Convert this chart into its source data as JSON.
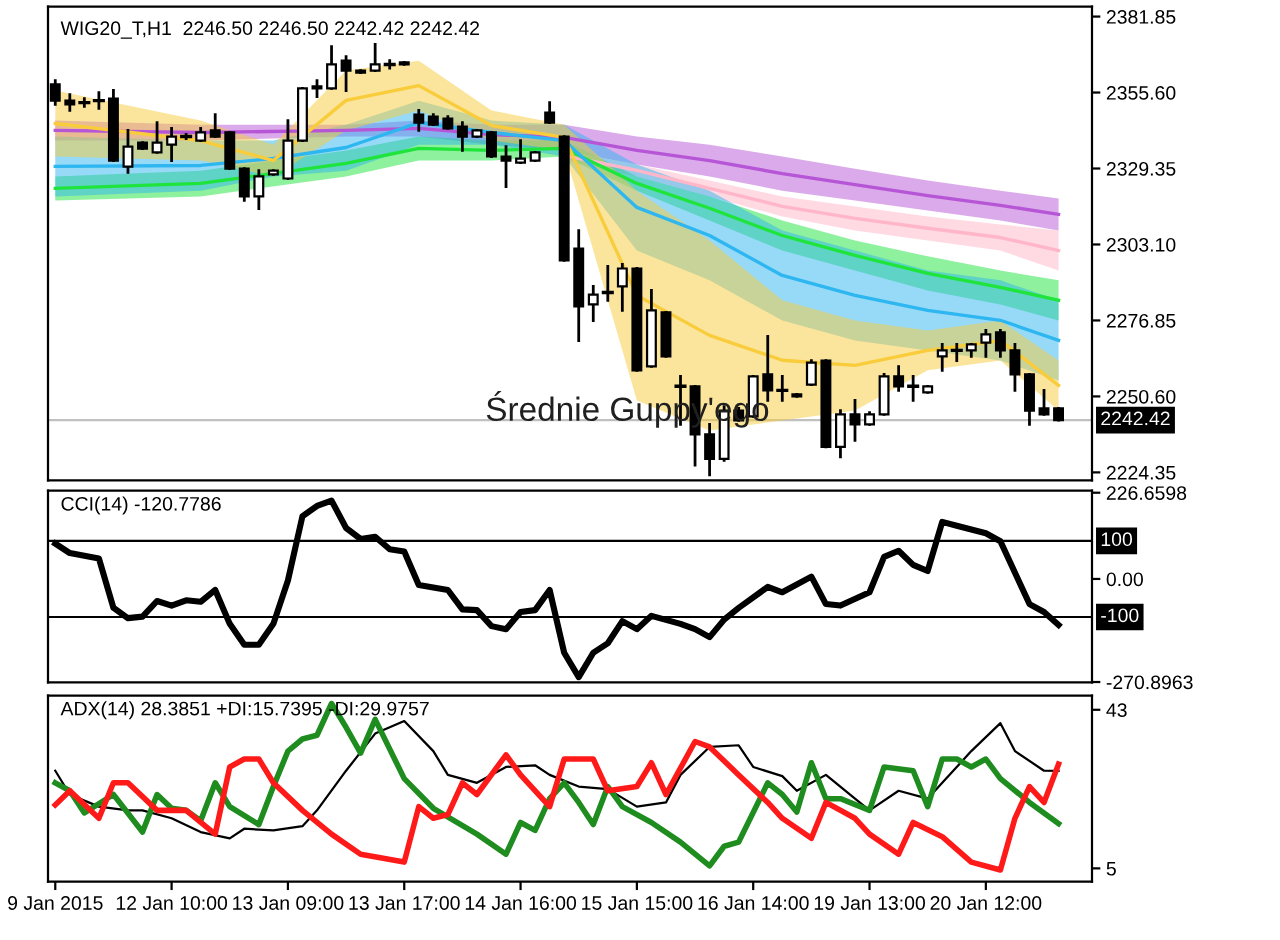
{
  "chart_data": [
    {
      "type": "candlestick",
      "title": "WIG20_T,H1  2246.50 2246.50 2242.42 2242.42",
      "ohlc": [
        [
          2358.4,
          2359.7,
          2351.5,
          2352.8
        ],
        [
          2352.8,
          2354.9,
          2349.4,
          2351.5
        ],
        [
          2352.1,
          2353.5,
          2350.8,
          2352.1
        ],
        [
          2352.8,
          2355.6,
          2350.1,
          2352.8
        ],
        [
          2353.5,
          2356.3,
          2332.1,
          2332.1
        ],
        [
          2330.0,
          2342.5,
          2328.0,
          2336.9
        ],
        [
          2338.3,
          2338.3,
          2336.2,
          2336.2
        ],
        [
          2334.9,
          2345.2,
          2334.9,
          2338.3
        ],
        [
          2337.6,
          2343.2,
          2332.1,
          2340.4
        ],
        [
          2340.4,
          2341.1,
          2339.7,
          2340.4
        ],
        [
          2339.0,
          2343.2,
          2339.0,
          2341.8
        ],
        [
          2342.5,
          2348.0,
          2340.4,
          2340.4
        ],
        [
          2341.8,
          2341.8,
          2329.3,
          2329.3
        ],
        [
          2329.3,
          2329.3,
          2318.3,
          2319.7
        ],
        [
          2319.7,
          2328.6,
          2315.5,
          2326.6
        ],
        [
          2327.3,
          2328.6,
          2327.3,
          2328.6
        ],
        [
          2325.9,
          2345.9,
          2325.9,
          2339.0
        ],
        [
          2339.0,
          2357.0,
          2339.0,
          2357.0
        ],
        [
          2357.0,
          2359.7,
          2354.2,
          2357.7
        ],
        [
          2357.0,
          2371.5,
          2357.0,
          2365.3
        ],
        [
          2366.6,
          2368.0,
          2356.3,
          2363.2
        ],
        [
          2363.2,
          2363.2,
          2362.5,
          2362.5
        ],
        [
          2363.2,
          2372.2,
          2363.2,
          2365.3
        ],
        [
          2365.3,
          2366.6,
          2364.0,
          2365.3
        ],
        [
          2366.0,
          2366.0,
          2365.3,
          2365.3
        ],
        [
          2348.0,
          2349.4,
          2342.5,
          2345.2
        ],
        [
          2347.3,
          2348.0,
          2344.5,
          2344.5
        ],
        [
          2346.6,
          2347.3,
          2343.2,
          2343.2
        ],
        [
          2343.8,
          2345.2,
          2335.6,
          2340.4
        ],
        [
          2340.4,
          2342.5,
          2340.4,
          2342.5
        ],
        [
          2341.8,
          2341.8,
          2333.5,
          2333.5
        ],
        [
          2333.5,
          2336.9,
          2323.1,
          2332.1
        ],
        [
          2331.4,
          2339.0,
          2331.4,
          2332.8
        ],
        [
          2332.1,
          2334.9,
          2332.1,
          2334.9
        ],
        [
          2348.7,
          2352.1,
          2345.2,
          2345.2
        ],
        [
          2340.4,
          2340.4,
          2297.6,
          2297.6
        ],
        [
          2301.7,
          2307.9,
          2269.9,
          2281.7
        ],
        [
          2282.4,
          2288.6,
          2276.8,
          2285.8
        ],
        [
          2286.5,
          2295.5,
          2283.8,
          2286.5
        ],
        [
          2288.6,
          2296.2,
          2280.3,
          2294.8
        ],
        [
          2294.8,
          2294.8,
          2259.6,
          2259.6
        ],
        [
          2261.0,
          2287.2,
          2261.0,
          2280.3
        ],
        [
          2279.6,
          2279.6,
          2264.4,
          2264.4
        ],
        [
          2254.1,
          2257.5,
          2240.9,
          2254.1
        ],
        [
          2254.1,
          2254.1,
          2226.9,
          2237.5
        ],
        [
          2237.5,
          2240.9,
          2223.5,
          2229.0
        ],
        [
          2229.0,
          2247.1,
          2228.5,
          2245.7
        ],
        [
          2245.7,
          2246.5,
          2242.3,
          2242.3
        ],
        [
          2243.7,
          2257.5,
          2243.7,
          2257.5
        ],
        [
          2258.2,
          2271.3,
          2249.2,
          2252.7
        ],
        [
          2252.7,
          2257.5,
          2249.2,
          2252.7
        ],
        [
          2251.3,
          2251.3,
          2250.6,
          2250.6
        ],
        [
          2254.7,
          2263.0,
          2254.7,
          2262.3
        ],
        [
          2263.0,
          2263.0,
          2233.2,
          2233.2
        ],
        [
          2233.2,
          2245.7,
          2229.7,
          2244.4
        ],
        [
          2244.4,
          2249.2,
          2235.4,
          2240.9
        ],
        [
          2240.9,
          2245.0,
          2240.9,
          2244.4
        ],
        [
          2244.4,
          2258.2,
          2244.4,
          2257.5
        ],
        [
          2257.5,
          2260.9,
          2252.7,
          2254.1
        ],
        [
          2254.1,
          2257.5,
          2249.2,
          2254.1
        ],
        [
          2252.0,
          2254.1,
          2252.0,
          2254.1
        ],
        [
          2264.4,
          2268.6,
          2259.6,
          2266.5
        ],
        [
          2266.5,
          2268.6,
          2263.0,
          2266.5
        ],
        [
          2266.5,
          2268.6,
          2264.4,
          2268.6
        ],
        [
          2269.2,
          2273.4,
          2264.4,
          2272.0
        ],
        [
          2272.7,
          2273.4,
          2264.4,
          2266.5
        ],
        [
          2266.5,
          2268.6,
          2252.7,
          2258.2
        ],
        [
          2258.2,
          2258.2,
          2240.9,
          2245.7
        ],
        [
          2246.5,
          2252.7,
          2244.4,
          2244.4
        ],
        [
          2246.5,
          2246.5,
          2242.42,
          2242.42
        ]
      ],
      "series": [
        {
          "type": "line",
          "color": "#b656d6",
          "values": [
            2342.5,
            null,
            null,
            null,
            null,
            null,
            null,
            null,
            null,
            null,
            2341.8,
            null,
            null,
            null,
            null,
            null,
            null,
            null,
            null,
            null,
            2342.5,
            null,
            null,
            null,
            null,
            2343.2,
            null,
            null,
            null,
            null,
            2341.1,
            null,
            null,
            null,
            null,
            2340.1,
            null,
            null,
            null,
            null,
            2335.6,
            null,
            null,
            null,
            null,
            2332.1,
            null,
            null,
            null,
            null,
            2327.6,
            null,
            null,
            null,
            null,
            2323.8,
            null,
            null,
            null,
            null,
            2320.0,
            null,
            null,
            null,
            null,
            2316.6,
            null,
            null,
            null,
            2313.5
          ],
          "lower": [
            2339.0,
            null,
            null,
            null,
            null,
            null,
            null,
            null,
            null,
            null,
            2339.0,
            null,
            null,
            null,
            null,
            null,
            null,
            null,
            null,
            null,
            2340.4,
            null,
            null,
            null,
            null,
            2340.4,
            null,
            null,
            null,
            null,
            2337.6,
            null,
            null,
            null,
            null,
            2335.6,
            null,
            null,
            null,
            null,
            2330.7,
            null,
            null,
            null,
            null,
            2326.6,
            null,
            null,
            null,
            null,
            2321.7,
            null,
            null,
            null,
            null,
            2318.3,
            null,
            null,
            null,
            null,
            2314.8,
            null,
            null,
            null,
            null,
            2311.4,
            null,
            null,
            null,
            2307.9
          ],
          "upper": [
            2345.9,
            null,
            null,
            null,
            null,
            null,
            null,
            null,
            null,
            null,
            2344.5,
            null,
            null,
            null,
            null,
            null,
            null,
            null,
            null,
            null,
            2344.5,
            null,
            null,
            null,
            null,
            2345.9,
            null,
            null,
            null,
            null,
            2344.5,
            null,
            null,
            null,
            null,
            2344.5,
            null,
            null,
            null,
            null,
            2340.4,
            null,
            null,
            null,
            null,
            2337.6,
            null,
            null,
            null,
            null,
            2333.5,
            null,
            null,
            null,
            null,
            2329.3,
            null,
            null,
            null,
            null,
            2325.2,
            null,
            null,
            null,
            null,
            2321.7,
            null,
            null,
            null,
            2319.0
          ]
        },
        {
          "type": "line",
          "color": "#ffb6c8",
          "values": [
            null,
            null,
            null,
            null,
            null,
            null,
            null,
            null,
            null,
            null,
            null,
            null,
            null,
            null,
            null,
            null,
            null,
            null,
            null,
            null,
            null,
            null,
            null,
            null,
            null,
            null,
            null,
            null,
            null,
            null,
            null,
            null,
            null,
            null,
            null,
            2333.9,
            null,
            null,
            null,
            null,
            2328.7,
            null,
            null,
            null,
            null,
            2322.5,
            null,
            null,
            null,
            null,
            2316.3,
            null,
            null,
            null,
            null,
            2312.1,
            null,
            null,
            null,
            null,
            2308.7,
            null,
            null,
            null,
            null,
            2305.5,
            null,
            null,
            null,
            2301.0
          ],
          "lower": [
            null,
            null,
            null,
            null,
            null,
            null,
            null,
            null,
            null,
            null,
            null,
            null,
            null,
            null,
            null,
            null,
            null,
            null,
            null,
            null,
            null,
            null,
            null,
            null,
            null,
            null,
            null,
            null,
            null,
            null,
            null,
            null,
            null,
            null,
            null,
            2332.1,
            null,
            null,
            null,
            null,
            2326.6,
            null,
            null,
            null,
            null,
            2319.7,
            null,
            null,
            null,
            null,
            2312.8,
            null,
            null,
            null,
            null,
            2307.9,
            null,
            null,
            null,
            null,
            2304.5,
            null,
            null,
            null,
            null,
            2301.0,
            null,
            null,
            null,
            2294.1
          ],
          "upper": [
            null,
            null,
            null,
            null,
            null,
            null,
            null,
            null,
            null,
            null,
            null,
            null,
            null,
            null,
            null,
            null,
            null,
            null,
            null,
            null,
            null,
            null,
            null,
            null,
            null,
            null,
            null,
            null,
            null,
            null,
            null,
            null,
            null,
            null,
            null,
            2335.6,
            null,
            null,
            null,
            null,
            2330.7,
            null,
            null,
            null,
            null,
            2325.2,
            null,
            null,
            null,
            null,
            2319.7,
            null,
            null,
            null,
            null,
            2316.2,
            null,
            null,
            null,
            null,
            2312.8,
            null,
            null,
            null,
            null,
            2310.0,
            null,
            null,
            null,
            2307.9
          ]
        },
        {
          "type": "line",
          "color": "#1ee43c",
          "values": [
            2322.5,
            null,
            null,
            null,
            null,
            null,
            null,
            null,
            null,
            null,
            2324.2,
            null,
            null,
            null,
            null,
            null,
            null,
            null,
            null,
            null,
            2331.1,
            null,
            null,
            null,
            null,
            2336.3,
            null,
            null,
            null,
            null,
            2335.6,
            null,
            null,
            null,
            null,
            2336.3,
            null,
            null,
            null,
            null,
            2324.2,
            null,
            null,
            null,
            null,
            2315.6,
            null,
            null,
            null,
            null,
            2306.2,
            null,
            null,
            null,
            null,
            2299.3,
            null,
            null,
            null,
            null,
            2293.1,
            null,
            null,
            null,
            null,
            2288.3,
            null,
            null,
            null,
            2283.8
          ],
          "lower": [
            2318.3,
            null,
            null,
            null,
            null,
            null,
            null,
            null,
            null,
            null,
            2319.7,
            null,
            null,
            null,
            null,
            null,
            null,
            null,
            null,
            null,
            2326.6,
            null,
            null,
            null,
            null,
            2332.1,
            null,
            null,
            null,
            null,
            2332.1,
            null,
            null,
            null,
            null,
            2333.5,
            null,
            null,
            null,
            null,
            2321.7,
            null,
            null,
            null,
            null,
            2311.4,
            null,
            null,
            null,
            null,
            2301.0,
            null,
            null,
            null,
            null,
            2294.1,
            null,
            null,
            null,
            null,
            2287.2,
            null,
            null,
            null,
            null,
            2282.4,
            null,
            null,
            null,
            2276.8
          ],
          "upper": [
            2326.6,
            null,
            null,
            null,
            null,
            null,
            null,
            null,
            null,
            null,
            2328.6,
            null,
            null,
            null,
            null,
            null,
            null,
            null,
            null,
            null,
            2335.6,
            null,
            null,
            null,
            null,
            2340.4,
            null,
            null,
            null,
            null,
            2339.0,
            null,
            null,
            null,
            null,
            2339.0,
            null,
            null,
            null,
            null,
            2326.6,
            null,
            null,
            null,
            null,
            2319.7,
            null,
            null,
            null,
            null,
            2311.4,
            null,
            null,
            null,
            null,
            2304.5,
            null,
            null,
            null,
            null,
            2299.0,
            null,
            null,
            null,
            null,
            2294.1,
            null,
            null,
            null,
            2290.7
          ]
        },
        {
          "type": "line",
          "color": "#2eb6f0",
          "values": [
            2330.1,
            null,
            null,
            null,
            null,
            null,
            null,
            null,
            null,
            null,
            2330.4,
            null,
            null,
            null,
            null,
            2332.8,
            null,
            null,
            null,
            null,
            2336.6,
            null,
            null,
            null,
            null,
            2345.2,
            null,
            null,
            null,
            null,
            2341.8,
            null,
            null,
            null,
            null,
            2339.0,
            null,
            null,
            null,
            null,
            2315.9,
            null,
            null,
            null,
            null,
            2306.2,
            null,
            null,
            null,
            null,
            2292.4,
            null,
            null,
            null,
            null,
            2285.5,
            null,
            null,
            null,
            null,
            2280.3,
            null,
            null,
            null,
            null,
            2276.9,
            null,
            null,
            null,
            2270.0
          ],
          "lower": [
            2319.7,
            null,
            null,
            null,
            null,
            null,
            null,
            null,
            null,
            null,
            2321.7,
            null,
            null,
            null,
            null,
            2326.6,
            null,
            null,
            null,
            null,
            2328.6,
            null,
            null,
            null,
            null,
            2337.6,
            null,
            null,
            null,
            null,
            2337.6,
            null,
            null,
            null,
            null,
            2333.5,
            null,
            null,
            null,
            null,
            2301.0,
            null,
            null,
            null,
            null,
            2290.7,
            null,
            null,
            null,
            null,
            2276.8,
            null,
            null,
            null,
            null,
            2269.9,
            null,
            null,
            null,
            null,
            2266.5,
            null,
            null,
            null,
            null,
            2263.0,
            null,
            null,
            null,
            2256.1
          ],
          "upper": [
            2340.4,
            null,
            null,
            null,
            null,
            null,
            null,
            null,
            null,
            null,
            2339.0,
            null,
            null,
            null,
            null,
            2339.0,
            null,
            null,
            null,
            null,
            2344.5,
            null,
            null,
            null,
            null,
            2352.8,
            null,
            null,
            null,
            null,
            2345.9,
            null,
            null,
            null,
            null,
            2344.5,
            null,
            null,
            null,
            null,
            2330.7,
            null,
            null,
            null,
            null,
            2321.7,
            null,
            null,
            null,
            null,
            2307.9,
            null,
            null,
            null,
            null,
            2301.0,
            null,
            null,
            null,
            null,
            2294.1,
            null,
            null,
            null,
            null,
            2290.7,
            null,
            null,
            null,
            2283.8
          ]
        },
        {
          "type": "line",
          "color": "#f8cc3a",
          "values": [
            2344.9,
            null,
            null,
            null,
            null,
            null,
            null,
            null,
            null,
            null,
            2339.0,
            null,
            null,
            null,
            null,
            2332.1,
            null,
            null,
            null,
            null,
            2352.9,
            null,
            null,
            null,
            null,
            2358.0,
            null,
            null,
            null,
            null,
            2344.2,
            null,
            null,
            null,
            null,
            2340.1,
            null,
            null,
            null,
            null,
            2285.5,
            null,
            null,
            null,
            null,
            2271.7,
            null,
            null,
            null,
            null,
            2263.1,
            null,
            null,
            null,
            null,
            2261.3,
            null,
            null,
            null,
            null,
            2266.5,
            null,
            null,
            null,
            null,
            2269.9,
            null,
            null,
            null,
            2254.4
          ],
          "lower": [
            2333.5,
            null,
            null,
            null,
            null,
            null,
            null,
            null,
            null,
            null,
            2332.1,
            null,
            null,
            null,
            null,
            2326.6,
            null,
            null,
            null,
            null,
            2342.5,
            null,
            null,
            null,
            null,
            2349.4,
            null,
            null,
            null,
            null,
            2339.0,
            null,
            null,
            null,
            null,
            2335.6,
            null,
            null,
            null,
            null,
            2249.2,
            null,
            null,
            null,
            null,
            2238.8,
            null,
            null,
            null,
            null,
            2242.3,
            null,
            null,
            null,
            null,
            2245.7,
            null,
            null,
            null,
            null,
            2259.6,
            null,
            null,
            null,
            null,
            2263.0,
            null,
            null,
            null,
            2245.7
          ],
          "upper": [
            2356.3,
            null,
            null,
            null,
            null,
            null,
            null,
            null,
            null,
            null,
            2345.9,
            null,
            null,
            null,
            null,
            2337.6,
            null,
            null,
            null,
            null,
            2363.2,
            null,
            null,
            null,
            null,
            2366.6,
            null,
            null,
            null,
            null,
            2349.4,
            null,
            null,
            null,
            null,
            2344.5,
            null,
            null,
            null,
            null,
            2321.7,
            null,
            null,
            null,
            null,
            2304.5,
            null,
            null,
            null,
            null,
            2283.8,
            null,
            null,
            null,
            null,
            2276.8,
            null,
            null,
            null,
            null,
            2273.4,
            null,
            null,
            null,
            null,
            2276.8,
            null,
            null,
            null,
            2263.0
          ]
        }
      ],
      "ylim": [
        2221.6,
        2385.3
      ],
      "yticks": [
        {
          "value": 2381.85,
          "label": "2381.85"
        },
        {
          "value": 2355.6,
          "label": "2355.60"
        },
        {
          "value": 2329.35,
          "label": "2329.35"
        },
        {
          "value": 2303.1,
          "label": "2303.10"
        },
        {
          "value": 2276.85,
          "label": "2276.85"
        },
        {
          "value": 2250.6,
          "label": "2250.60"
        },
        {
          "value": 2224.35,
          "label": "2224.35"
        }
      ],
      "ref_lines": [
        {
          "axis": "y",
          "value": 2242.42,
          "label": "2242.42",
          "color": "#c0c0c0"
        }
      ],
      "annotations": [
        "Średnie Guppy'ego"
      ],
      "tick_labels": "y"
    },
    {
      "type": "line",
      "title": "CCI(14) -120.7786",
      "series": [
        {
          "color": "#000000",
          "values": [
            93,
            68,
            null,
            54,
            -76,
            -103,
            -99,
            -58,
            -70,
            -56,
            -60,
            -29,
            -118,
            -173,
            -173,
            -118,
            -4,
            165,
            192,
            206,
            134,
            105,
            111,
            78,
            72,
            -16,
            null,
            -29,
            -80,
            -82,
            -124,
            -132,
            -87,
            -82,
            -29,
            -194,
            -258,
            -194,
            -169,
            -111,
            -132,
            -97,
            null,
            -118,
            -132,
            -153,
            -107,
            -76,
            null,
            -21,
            -35,
            null,
            6,
            -66,
            -70,
            null,
            -35,
            58,
            74,
            37,
            21,
            150,
            140,
            null,
            120,
            99,
            null,
            -66,
            -87,
            -120.7786
          ]
        }
      ],
      "ylim": [
        -272,
        232
      ],
      "yticks": [
        {
          "value": 226.6598,
          "label": "226.6598"
        },
        {
          "value": 0,
          "label": "0.00"
        },
        {
          "value": -270.8963,
          "label": "-270.8963"
        }
      ],
      "ref_lines": [
        {
          "axis": "y",
          "value": 100,
          "label": "100",
          "color": "#000000"
        },
        {
          "axis": "y",
          "value": -100,
          "label": "-100",
          "color": "#000000"
        }
      ],
      "tick_labels": "y"
    },
    {
      "type": "line",
      "title": "ADX(14) 28.3851 +DI:15.7395 -DI:29.9757",
      "categories": [
        "9 Jan 2015",
        null,
        null,
        null,
        null,
        null,
        null,
        null,
        "12 Jan 10:00",
        null,
        null,
        null,
        null,
        null,
        null,
        null,
        "13 Jan 09:00",
        null,
        null,
        null,
        null,
        null,
        null,
        null,
        "13 Jan 17:00",
        null,
        null,
        null,
        null,
        null,
        null,
        null,
        "14 Jan 16:00",
        null,
        null,
        null,
        null,
        null,
        null,
        null,
        "15 Jan 15:00",
        null,
        null,
        null,
        null,
        null,
        null,
        null,
        "16 Jan 14:00",
        null,
        null,
        null,
        null,
        null,
        null,
        null,
        "19 Jan 13:00",
        null,
        null,
        null,
        null,
        null,
        null,
        null,
        "20 Jan 12:00",
        null,
        null,
        null,
        null,
        null
      ],
      "series": [
        {
          "color": "#000000",
          "values": [
            28.4,
            22.7,
            null,
            19.8,
            null,
            18.9,
            18.9,
            null,
            17.0,
            null,
            13.7,
            null,
            12.2,
            14.5,
            null,
            14.1,
            null,
            15.1,
            18.9,
            null,
            28.4,
            null,
            37.3,
            null,
            40.3,
            null,
            33.1,
            27.4,
            null,
            25.5,
            null,
            29.3,
            null,
            29.7,
            27.4,
            null,
            24.6,
            null,
            24.0,
            null,
            19.8,
            null,
            20.8,
            27.4,
            null,
            34.1,
            null,
            34.5,
            29.3,
            null,
            27.1,
            23.6,
            null,
            27.4,
            null,
            21.7,
            18.9,
            null,
            23.6,
            null,
            21.7,
            25.5,
            null,
            33.1,
            null,
            39.8,
            33.1,
            null,
            28.4,
            28.3851
          ]
        },
        {
          "color": "#1e8c1e",
          "values": [
            25.5,
            23.6,
            18.3,
            null,
            22.7,
            null,
            13.7,
            22.7,
            19.4,
            18.9,
            16.4,
            25.5,
            19.8,
            null,
            15.5,
            24.6,
            33.1,
            36.0,
            36.9,
            44.5,
            38.8,
            32.6,
            40.7,
            null,
            26.5,
            null,
            19.4,
            null,
            null,
            13.2,
            null,
            8.4,
            16.0,
            14.1,
            21.7,
            25.5,
            20.8,
            15.5,
            24.6,
            19.8,
            null,
            16.0,
            null,
            11.3,
            null,
            5.6,
            10.3,
            11.3,
            null,
            25.5,
            22.7,
            18.5,
            30.3,
            21.7,
            21.7,
            null,
            18.9,
            29.3,
            null,
            28.4,
            19.8,
            31.2,
            31.2,
            29.3,
            31.2,
            26.5,
            null,
            20.8,
            null,
            15.7395
          ]
        },
        {
          "color": "#ff1a1a",
          "values": [
            20.2,
            23.6,
            null,
            17.0,
            25.5,
            25.5,
            null,
            18.9,
            null,
            18.9,
            null,
            13.2,
            29.3,
            31.2,
            31.2,
            25.5,
            null,
            18.9,
            null,
            13.2,
            null,
            8.4,
            null,
            null,
            6.5,
            19.8,
            17.0,
            17.9,
            25.5,
            22.7,
            null,
            32.2,
            27.4,
            null,
            19.8,
            31.2,
            null,
            31.2,
            23.6,
            null,
            24.6,
            30.3,
            22.7,
            null,
            35.4,
            34.1,
            null,
            27.4,
            null,
            20.8,
            17.0,
            null,
            12.2,
            20.8,
            null,
            17.0,
            13.2,
            null,
            8.4,
            16.0,
            null,
            12.6,
            null,
            6.5,
            null,
            4.6,
            17.0,
            24.6,
            20.8,
            29.9757
          ]
        }
      ],
      "ylim": [
        1.8,
        46.4
      ],
      "yticks": [
        43,
        5
      ]
    }
  ]
}
